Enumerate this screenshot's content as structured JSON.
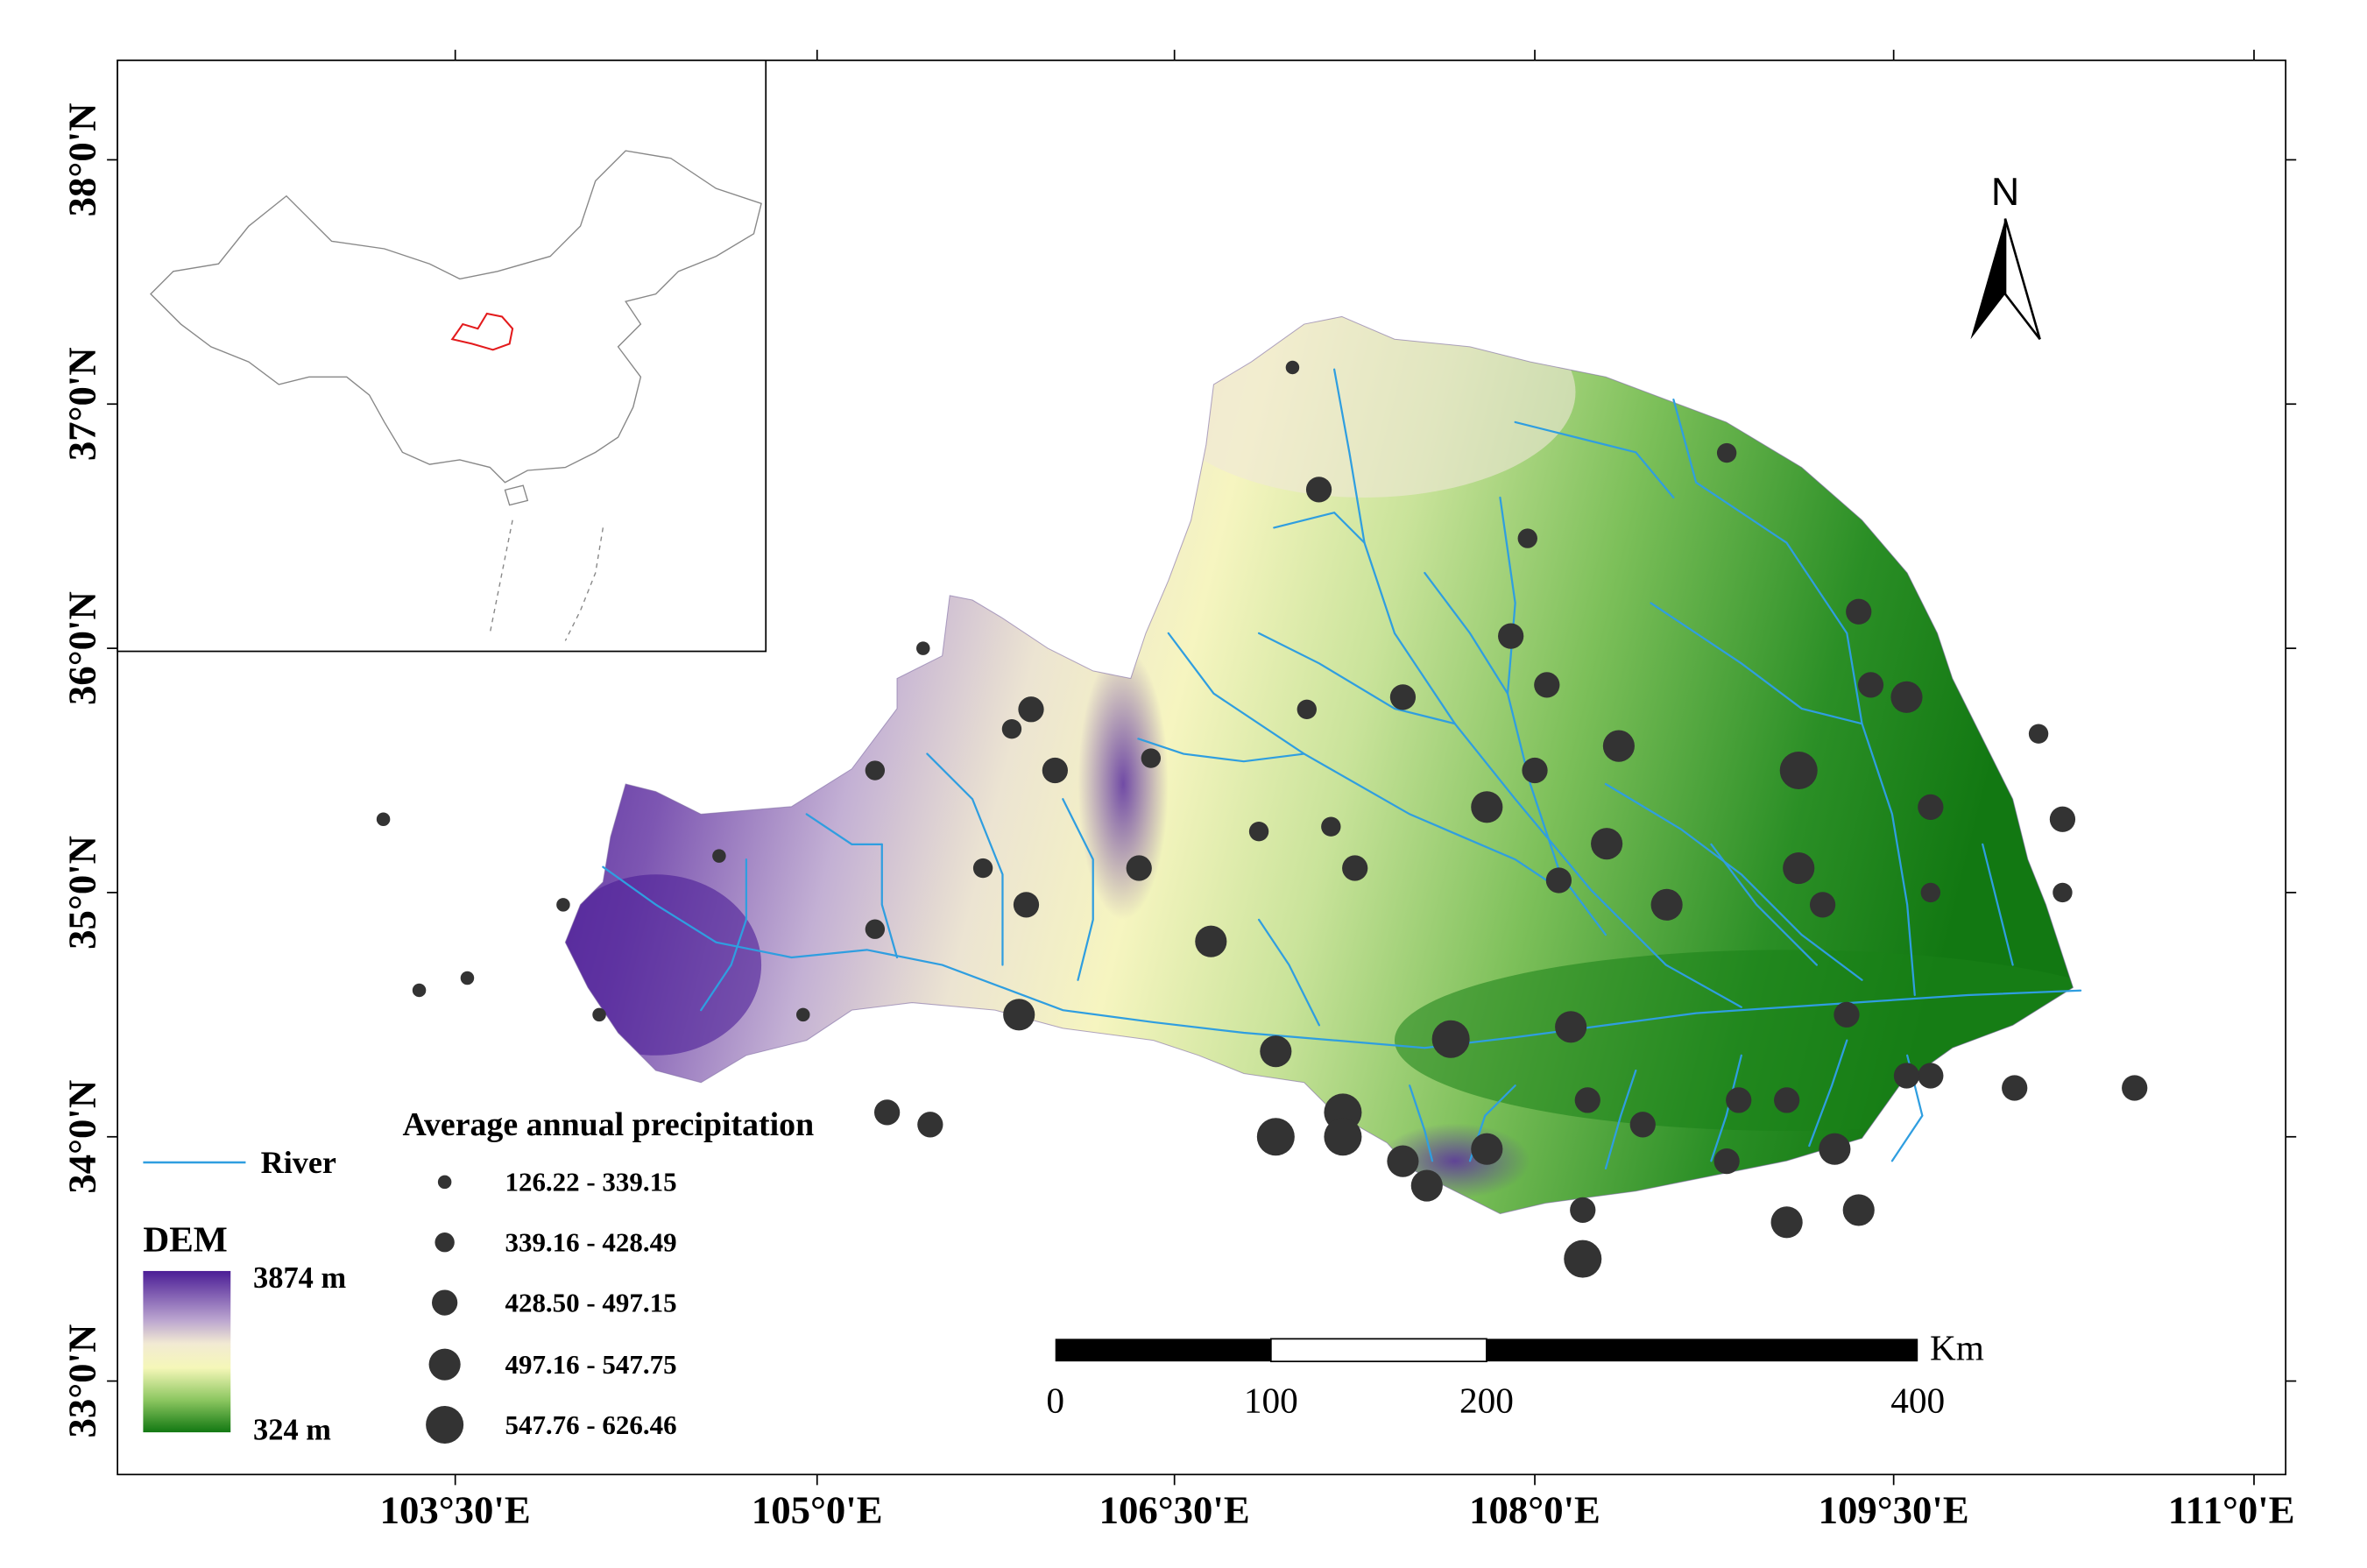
{
  "axes": {
    "x_ticks": [
      "103°30'E",
      "105°0'E",
      "106°30'E",
      "108°0'E",
      "109°30'E",
      "111°0'E"
    ],
    "y_ticks": [
      "38°0'N",
      "37°0'N",
      "36°0'N",
      "35°0'N",
      "34°0'N",
      "33°0'N"
    ]
  },
  "north_arrow": {
    "label": "N"
  },
  "legend": {
    "river_label": "River",
    "dem_title": "DEM",
    "dem_max": "3874 m",
    "dem_min": "324 m",
    "dem_colors": [
      "#4b1d96",
      "#9a7cc0",
      "#f1ead3",
      "#f5f7b8",
      "#9ccf6a",
      "#1a7e1a"
    ],
    "river_color": "#2f9ee0"
  },
  "precip_legend": {
    "title": "Average annual precipitation",
    "classes": [
      "126.22 - 339.15",
      "339.16 - 428.49",
      "428.50 - 497.15",
      "497.16 - 547.75",
      "547.76 - 626.46"
    ]
  },
  "scale_bar": {
    "ticks": [
      "0",
      "100",
      "200",
      "400"
    ],
    "unit": "Km"
  },
  "stations": [
    [
      103.2,
      35.3,
      1
    ],
    [
      103.55,
      34.65,
      1
    ],
    [
      103.35,
      34.6,
      1
    ],
    [
      103.95,
      34.95,
      1
    ],
    [
      104.1,
      34.5,
      1
    ],
    [
      104.6,
      35.15,
      1
    ],
    [
      104.95,
      34.5,
      1
    ],
    [
      105.25,
      35.5,
      2
    ],
    [
      105.25,
      34.85,
      2
    ],
    [
      105.45,
      36.0,
      1
    ],
    [
      105.7,
      35.1,
      2
    ],
    [
      105.82,
      35.67,
      2
    ],
    [
      105.9,
      35.75,
      3
    ],
    [
      106.0,
      35.5,
      3
    ],
    [
      105.88,
      34.95,
      3
    ],
    [
      105.85,
      34.5,
      4
    ],
    [
      105.3,
      34.1,
      3
    ],
    [
      105.48,
      34.05,
      3
    ],
    [
      106.35,
      35.1,
      3
    ],
    [
      106.4,
      35.55,
      2
    ],
    [
      106.65,
      34.8,
      4
    ],
    [
      106.85,
      35.25,
      2
    ],
    [
      106.92,
      34.35,
      4
    ],
    [
      106.92,
      34.0,
      5
    ],
    [
      106.99,
      37.15,
      1
    ],
    [
      107.05,
      35.75,
      2
    ],
    [
      107.1,
      36.65,
      3
    ],
    [
      107.15,
      35.27,
      2
    ],
    [
      107.2,
      34.1,
      5
    ],
    [
      107.25,
      35.1,
      3
    ],
    [
      107.2,
      34.0,
      5
    ],
    [
      107.45,
      35.8,
      3
    ],
    [
      107.45,
      33.9,
      4
    ],
    [
      107.55,
      33.8,
      4
    ],
    [
      107.65,
      34.4,
      5
    ],
    [
      107.8,
      35.35,
      4
    ],
    [
      107.8,
      33.95,
      4
    ],
    [
      107.9,
      36.05,
      3
    ],
    [
      107.97,
      36.45,
      2
    ],
    [
      108.0,
      35.5,
      3
    ],
    [
      108.05,
      35.85,
      3
    ],
    [
      108.1,
      35.05,
      3
    ],
    [
      108.15,
      34.45,
      4
    ],
    [
      108.22,
      34.15,
      3
    ],
    [
      108.2,
      33.7,
      3
    ],
    [
      108.2,
      33.5,
      5
    ],
    [
      108.3,
      35.2,
      4
    ],
    [
      108.35,
      35.6,
      4
    ],
    [
      108.45,
      34.05,
      3
    ],
    [
      108.55,
      34.95,
      4
    ],
    [
      108.8,
      33.9,
      3
    ],
    [
      108.85,
      34.15,
      3
    ],
    [
      108.8,
      36.8,
      2
    ],
    [
      109.05,
      33.65,
      4
    ],
    [
      109.1,
      35.5,
      5
    ],
    [
      109.1,
      35.1,
      4
    ],
    [
      109.05,
      34.15,
      3
    ],
    [
      109.2,
      34.95,
      3
    ],
    [
      109.25,
      33.95,
      4
    ],
    [
      109.35,
      33.7,
      4
    ],
    [
      109.35,
      36.15,
      3
    ],
    [
      109.4,
      35.85,
      3
    ],
    [
      109.55,
      35.8,
      4
    ],
    [
      109.65,
      35.35,
      3
    ],
    [
      109.65,
      35.0,
      2
    ],
    [
      109.65,
      34.25,
      3
    ],
    [
      109.3,
      34.5,
      3
    ],
    [
      110.0,
      34.2,
      3
    ],
    [
      110.1,
      35.65,
      2
    ],
    [
      110.2,
      35.3,
      3
    ],
    [
      110.2,
      35.0,
      2
    ],
    [
      110.5,
      34.2,
      3
    ],
    [
      109.55,
      34.25,
      3
    ]
  ]
}
